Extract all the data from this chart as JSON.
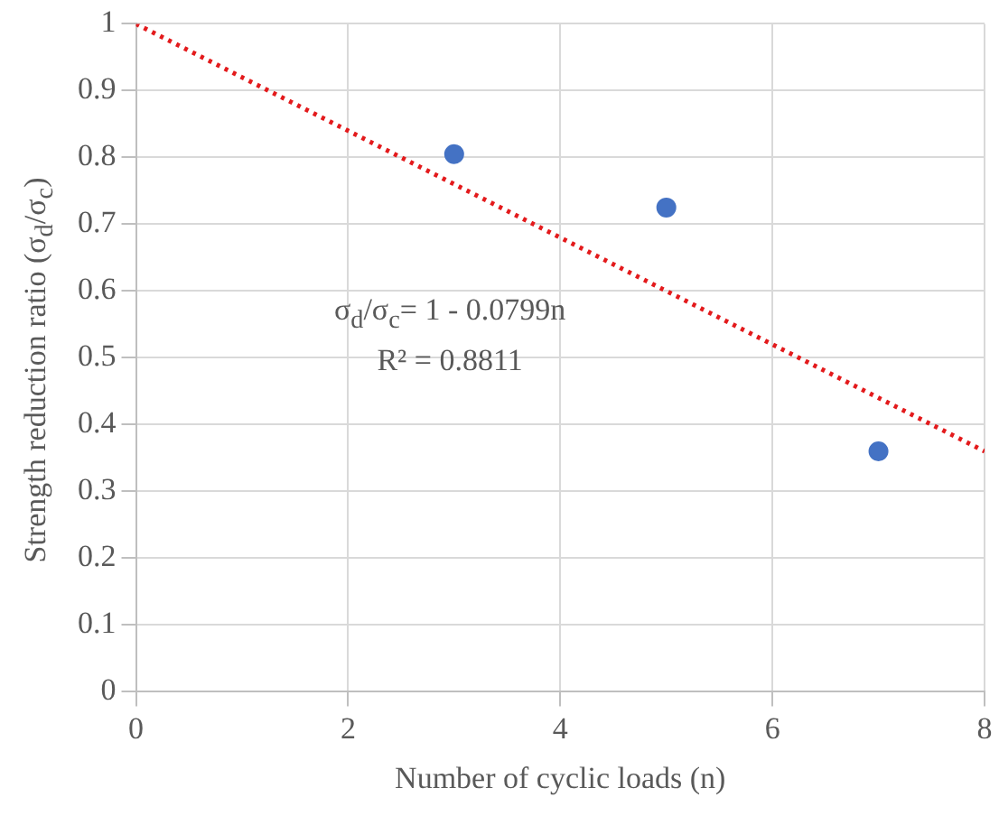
{
  "chart_data": {
    "type": "scatter",
    "xlabel": "Number of cyclic loads (n)",
    "ylabel": "Strength reduction ratio (σ$_{d}$/σ$_{c}$)",
    "xlim": [
      0,
      8
    ],
    "xticks": [
      0,
      2,
      4,
      6,
      8
    ],
    "ylim": [
      0,
      1
    ],
    "yticks": [
      0,
      0.1,
      0.2,
      0.3,
      0.4,
      0.5,
      0.6,
      0.7,
      0.8,
      0.9,
      1
    ],
    "grid": true,
    "marker": "circle",
    "series": [
      {
        "type": "scatter",
        "color": "#4472c4",
        "x": [
          3,
          5,
          7
        ],
        "values": [
          0.805,
          0.725,
          0.36
        ]
      },
      {
        "type": "line",
        "color": "#e31a1c",
        "line_style": "dotted",
        "marker": "none",
        "x": [
          0,
          8
        ],
        "values": [
          1,
          0.36
        ]
      }
    ],
    "annotations": [
      "σ$_{d}$/σ$_{c}$= 1 - 0.0799n",
      "R² = 0.8811"
    ]
  }
}
